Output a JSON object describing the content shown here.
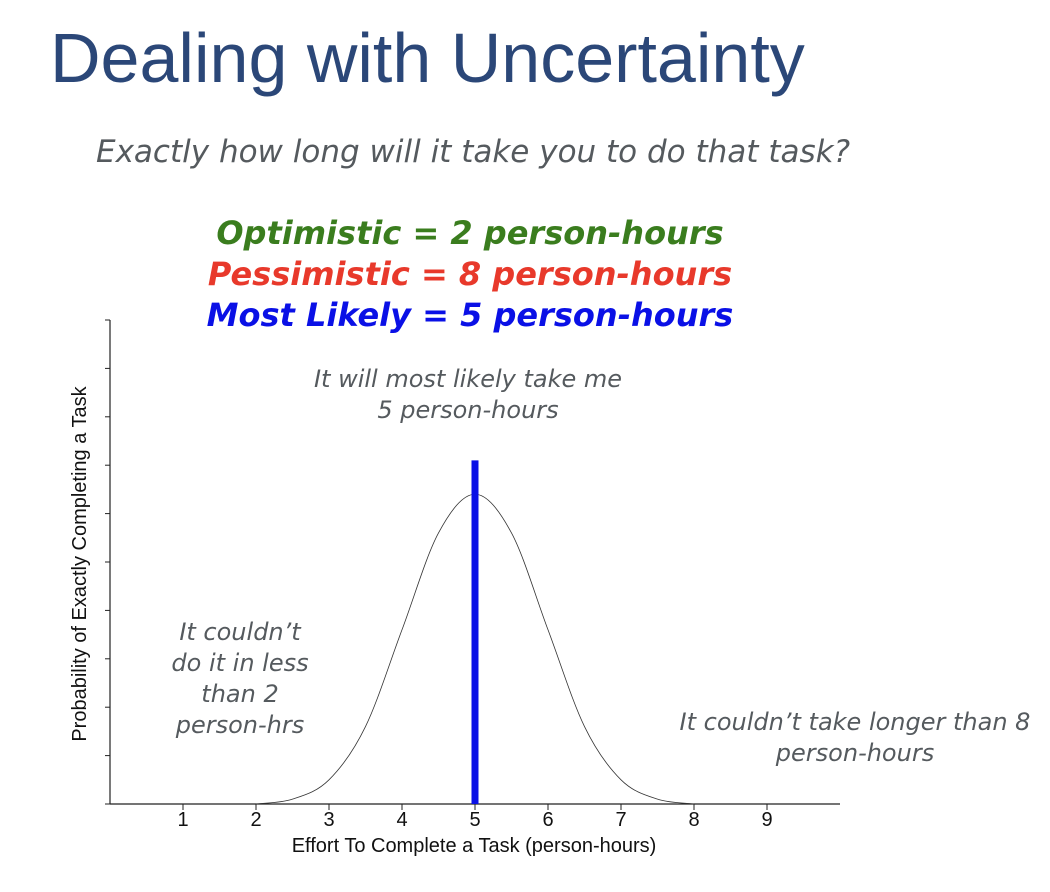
{
  "slide": {
    "title": "Dealing with Uncertainty",
    "subtitle": "Exactly how long will it take you to do that task?"
  },
  "estimates": {
    "optimistic": {
      "text": "Optimistic = 2 person-hours",
      "color": "#3a7d1e"
    },
    "pessimistic": {
      "text": "Pessimistic = 8 person-hours",
      "color": "#e8392b"
    },
    "most_likely": {
      "text": "Most Likely = 5 person-hours",
      "color": "#0a10e6"
    }
  },
  "notes": {
    "center": [
      "It will most likely take me",
      "5 person-hours"
    ],
    "left": [
      "It couldn’t",
      "do it in less",
      "than 2",
      "person-hrs"
    ],
    "right": [
      "It couldn’t take longer than 8",
      "person-hours"
    ]
  },
  "chart_data": {
    "type": "line",
    "xlabel": "Effort To Complete a Task (person-hours)",
    "ylabel": "Probability of Exactly Completing a Task",
    "x_ticks": [
      1,
      2,
      3,
      4,
      5,
      6,
      7,
      8,
      9
    ],
    "xlim": [
      0,
      10
    ],
    "ylim": [
      0,
      1
    ],
    "y_tick_count": 10,
    "y_tick_labels": false,
    "series": [
      {
        "x": [
          2.0,
          2.5,
          3.0,
          3.5,
          4.0,
          4.5,
          5.0,
          5.5,
          6.0,
          6.5,
          7.0,
          7.5,
          8.0
        ],
        "y": [
          0.0,
          0.01,
          0.05,
          0.16,
          0.36,
          0.56,
          0.64,
          0.56,
          0.36,
          0.16,
          0.05,
          0.01,
          0.0
        ],
        "color": "#333333"
      }
    ],
    "marker_line": {
      "x": 5,
      "y_top": 0.71,
      "color": "#0a10e6"
    }
  }
}
